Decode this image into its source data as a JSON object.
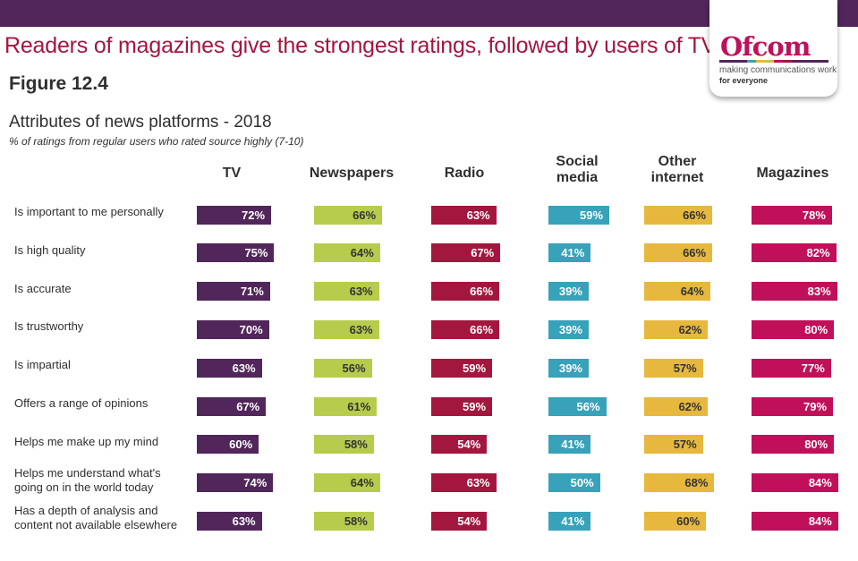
{
  "header": {
    "headline": "Readers of magazines give the strongest ratings, followed by users of TV.",
    "figure_label": "Figure 12.4"
  },
  "logo": {
    "wordmark": "Ofcom",
    "tagline_line1": "making communications work",
    "tagline_line2": "for everyone",
    "stripe_colors": [
      "#51265a",
      "#51265a",
      "#51265a",
      "#37a2b9",
      "#e6b83e",
      "#b7cc4c",
      "#c0105a",
      "#a3173f",
      "#51265a",
      "#51265a",
      "#51265a",
      "#51265a"
    ]
  },
  "chart_data": {
    "type": "bar",
    "title": "Attributes of news platforms - 2018",
    "subtitle": "% of ratings from regular users who rated source highly (7-10)",
    "orientation": "horizontal-small-multiples",
    "xlabel": "",
    "ylabel": "",
    "unit": "%",
    "xlim": [
      0,
      100
    ],
    "grid": false,
    "categories": [
      "Is important to me personally",
      "Is high quality",
      "Is accurate",
      "Is trustworthy",
      "Is impartial",
      "Offers a range of opinions",
      "Helps me make up my mind",
      "Helps me understand what's going on in the world today",
      "Has a depth of analysis and content not available elsewhere"
    ],
    "category_lines": [
      [
        "Is important to me personally"
      ],
      [
        "Is high quality"
      ],
      [
        "Is accurate"
      ],
      [
        "Is trustworthy"
      ],
      [
        "Is impartial"
      ],
      [
        "Offers a range of opinions"
      ],
      [
        "Helps me make up my mind"
      ],
      [
        "Helps me understand what's",
        "going on in the world today"
      ],
      [
        "Has a depth of analysis and",
        "content not available elsewhere"
      ]
    ],
    "series": [
      {
        "name": "TV",
        "name_lines": [
          "TV"
        ],
        "color": "#51265a",
        "label_color": "#ffffff",
        "values": [
          72,
          75,
          71,
          70,
          63,
          67,
          60,
          74,
          63
        ]
      },
      {
        "name": "Newspapers",
        "name_lines": [
          "Newspapers"
        ],
        "color": "#b7cc4c",
        "label_color": "#333333",
        "values": [
          66,
          64,
          63,
          63,
          56,
          61,
          58,
          64,
          58
        ]
      },
      {
        "name": "Radio",
        "name_lines": [
          "Radio"
        ],
        "color": "#a3173f",
        "label_color": "#ffffff",
        "values": [
          63,
          67,
          66,
          66,
          59,
          59,
          54,
          63,
          54
        ]
      },
      {
        "name": "Social media",
        "name_lines": [
          "Social",
          "media"
        ],
        "color": "#37a2b9",
        "label_color": "#ffffff",
        "values": [
          59,
          41,
          39,
          39,
          39,
          56,
          41,
          50,
          41
        ]
      },
      {
        "name": "Other internet",
        "name_lines": [
          "Other",
          "internet"
        ],
        "color": "#e6b83e",
        "label_color": "#333333",
        "values": [
          66,
          66,
          64,
          62,
          57,
          62,
          57,
          68,
          60
        ]
      },
      {
        "name": "Magazines",
        "name_lines": [
          "Magazines"
        ],
        "color": "#c0105a",
        "label_color": "#ffffff",
        "values": [
          78,
          82,
          83,
          80,
          77,
          79,
          80,
          84,
          84
        ]
      }
    ]
  }
}
